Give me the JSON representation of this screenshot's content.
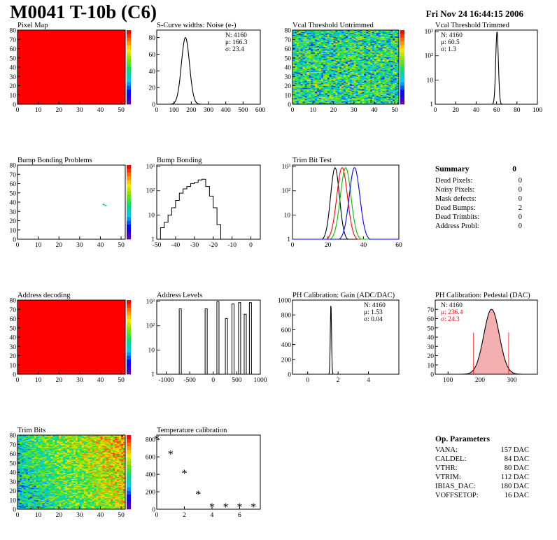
{
  "header": {
    "title": "M0041 T-10b (C6)",
    "date": "Fri Nov 24 16:44:15 2006"
  },
  "summary": {
    "title": "Summary",
    "total": "0",
    "rows": [
      {
        "label": "Dead Pixels:",
        "value": "0"
      },
      {
        "label": "Noisy Pixels:",
        "value": "0"
      },
      {
        "label": "Mask defects:",
        "value": "0"
      },
      {
        "label": "Dead Bumps:",
        "value": "2"
      },
      {
        "label": "Dead Trimbits:",
        "value": "0"
      },
      {
        "label": "Address Probl:",
        "value": "0"
      }
    ]
  },
  "op_params": {
    "title": "Op. Parameters",
    "rows": [
      {
        "label": "VANA:",
        "value": "157 DAC"
      },
      {
        "label": "CALDEL:",
        "value": "84 DAC"
      },
      {
        "label": "VTHR:",
        "value": "80 DAC"
      },
      {
        "label": "VTRIM:",
        "value": "112 DAC"
      },
      {
        "label": "IBIAS_DAC:",
        "value": "180 DAC"
      },
      {
        "label": "VOFFSETOP:",
        "value": "16 DAC"
      }
    ]
  },
  "colors": {
    "red": "#ff0000",
    "green": "#00c000",
    "blue": "#0000ff",
    "black": "#000000"
  },
  "chart_data": [
    {
      "id": "pixel-map",
      "type": "heatmap",
      "title": "Pixel Map",
      "xlim": [
        0,
        52
      ],
      "ylim": [
        0,
        80
      ],
      "xticks": [
        0,
        10,
        20,
        30,
        40,
        50
      ],
      "yticks": [
        0,
        10,
        20,
        30,
        40,
        50,
        60,
        70,
        80
      ],
      "fill": "uniform-max",
      "zlim": [
        0,
        10
      ]
    },
    {
      "id": "scurve",
      "type": "histogram",
      "title": "S-Curve widths: Noise (e-)",
      "xlim": [
        0,
        600
      ],
      "xticks": [
        0,
        100,
        200,
        300,
        400,
        500,
        600
      ],
      "stats": [
        "N: 4160",
        "μ: 166.3",
        "σ: 23.4"
      ],
      "gauss": {
        "mean": 166.3,
        "sigma": 23.4
      }
    },
    {
      "id": "vcal-untrimmed",
      "type": "heatmap",
      "title": "Vcal Threshold Untrimmed",
      "xlim": [
        0,
        52
      ],
      "ylim": [
        0,
        80
      ],
      "xticks": [
        0,
        10,
        20,
        30,
        40,
        50
      ],
      "yticks": [
        0,
        10,
        20,
        30,
        40,
        50,
        60,
        70,
        80
      ],
      "fill": "noise"
    },
    {
      "id": "vcal-trimmed",
      "type": "histogram",
      "title": "Vcal Threshold Trimmed",
      "xlim": [
        0,
        100
      ],
      "xticks": [
        0,
        20,
        40,
        60,
        80,
        100
      ],
      "log": true,
      "stats": [
        "N: 4160",
        "μ: 60.5",
        "σ: 1.3"
      ],
      "gauss": {
        "mean": 60.5,
        "sigma": 1.3
      }
    },
    {
      "id": "bump-map",
      "type": "heatmap",
      "title": "Bump Bonding Problems",
      "xlim": [
        0,
        52
      ],
      "ylim": [
        0,
        80
      ],
      "xticks": [
        0,
        10,
        20,
        30,
        40,
        50
      ],
      "yticks": [
        0,
        10,
        20,
        30,
        40,
        50,
        60,
        70,
        80
      ],
      "fill": "empty",
      "zlim": [
        -2,
        2
      ],
      "points": [
        [
          41,
          38
        ],
        [
          42,
          37
        ]
      ]
    },
    {
      "id": "bump-bonding",
      "type": "histogram",
      "title": "Bump Bonding",
      "xlim": [
        -50,
        5
      ],
      "xticks": [
        -50,
        -40,
        -30,
        -20,
        -10,
        0
      ],
      "log": true,
      "series": [
        {
          "x": [
            -50,
            -48,
            -46,
            -44,
            -42,
            -40,
            -38,
            -36,
            -34,
            -32,
            -30,
            -28,
            -26,
            -24,
            -22,
            -20,
            -18,
            -16
          ],
          "y": [
            1,
            3,
            5,
            10,
            20,
            40,
            80,
            120,
            150,
            200,
            220,
            280,
            300,
            150,
            60,
            20,
            4,
            1
          ]
        },
        {
          "x": [
            -1,
            1
          ],
          "y": [
            1,
            1
          ]
        }
      ]
    },
    {
      "id": "trim-bit-test",
      "type": "histogram",
      "title": "Trim Bit Test",
      "xlim": [
        0,
        60
      ],
      "xticks": [
        0,
        20,
        40,
        60
      ],
      "log": true,
      "gauss_multi": [
        {
          "mean": 24,
          "sigma": 2.5,
          "color": "#000000"
        },
        {
          "mean": 28,
          "sigma": 3,
          "color": "#ff0000"
        },
        {
          "mean": 30,
          "sigma": 3,
          "color": "#00c000"
        },
        {
          "mean": 35,
          "sigma": 3,
          "color": "#0000ff"
        }
      ]
    },
    {
      "id": "address-decoding",
      "type": "heatmap",
      "title": "Address decoding",
      "xlim": [
        0,
        52
      ],
      "ylim": [
        0,
        80
      ],
      "xticks": [
        0,
        10,
        20,
        30,
        40,
        50
      ],
      "yticks": [
        0,
        10,
        20,
        30,
        40,
        50,
        60,
        70,
        80
      ],
      "fill": "uniform-max",
      "zlim": [
        0,
        1
      ]
    },
    {
      "id": "address-levels",
      "type": "histogram",
      "title": "Address Levels",
      "xlim": [
        -1200,
        1000
      ],
      "xticks": [
        -1000,
        -500,
        0,
        500,
        1000
      ],
      "log": true,
      "peaks": [
        [
          -700,
          500
        ],
        [
          -150,
          500
        ],
        [
          100,
          1000
        ],
        [
          280,
          200
        ],
        [
          420,
          800
        ],
        [
          560,
          900
        ],
        [
          680,
          300
        ],
        [
          790,
          900
        ]
      ]
    },
    {
      "id": "ph-gain",
      "type": "histogram",
      "title": "PH Calibration: Gain (ADC/DAC)",
      "xlim": [
        -1,
        6
      ],
      "xticks": [
        0,
        2,
        4
      ],
      "ylim": [
        0,
        1000
      ],
      "yticks": [
        0,
        200,
        400,
        600,
        800,
        1000
      ],
      "stats": [
        "N: 4160",
        "μ: 1.53",
        "σ: 0.04"
      ],
      "gauss": {
        "mean": 1.53,
        "sigma": 0.04,
        "peak": 950
      }
    },
    {
      "id": "ph-pedestal",
      "type": "histogram",
      "title": "PH Calibration: Pedestal (DAC)",
      "xlim": [
        60,
        380
      ],
      "xticks": [
        100,
        200,
        300
      ],
      "ylim": [
        0,
        80
      ],
      "yticks": [
        0,
        10,
        20,
        30,
        40,
        50,
        60,
        70
      ],
      "stats": [
        "N: 4160",
        "μ: 236.4",
        "σ: 24.3"
      ],
      "gauss": {
        "mean": 236.4,
        "sigma": 24.3,
        "peak": 70
      }
    },
    {
      "id": "trim-bits",
      "type": "heatmap",
      "title": "Trim Bits",
      "xlim": [
        0,
        52
      ],
      "ylim": [
        0,
        80
      ],
      "xticks": [
        0,
        10,
        20,
        30,
        40,
        50
      ],
      "yticks": [
        0,
        10,
        20,
        30,
        40,
        50,
        60,
        70,
        80
      ],
      "fill": "noise-warm",
      "zlim": [
        0,
        16
      ]
    },
    {
      "id": "temperature",
      "type": "scatter",
      "title": "Temperature calibration",
      "xlim": [
        0,
        7.5
      ],
      "xticks": [
        0,
        2,
        4,
        6
      ],
      "ylim": [
        0,
        850
      ],
      "yticks": [
        0,
        200,
        400,
        600,
        800
      ],
      "x": [
        0,
        1,
        2,
        3,
        4,
        5,
        6,
        7
      ],
      "y": [
        800,
        630,
        410,
        170,
        25,
        25,
        25,
        25
      ]
    }
  ]
}
